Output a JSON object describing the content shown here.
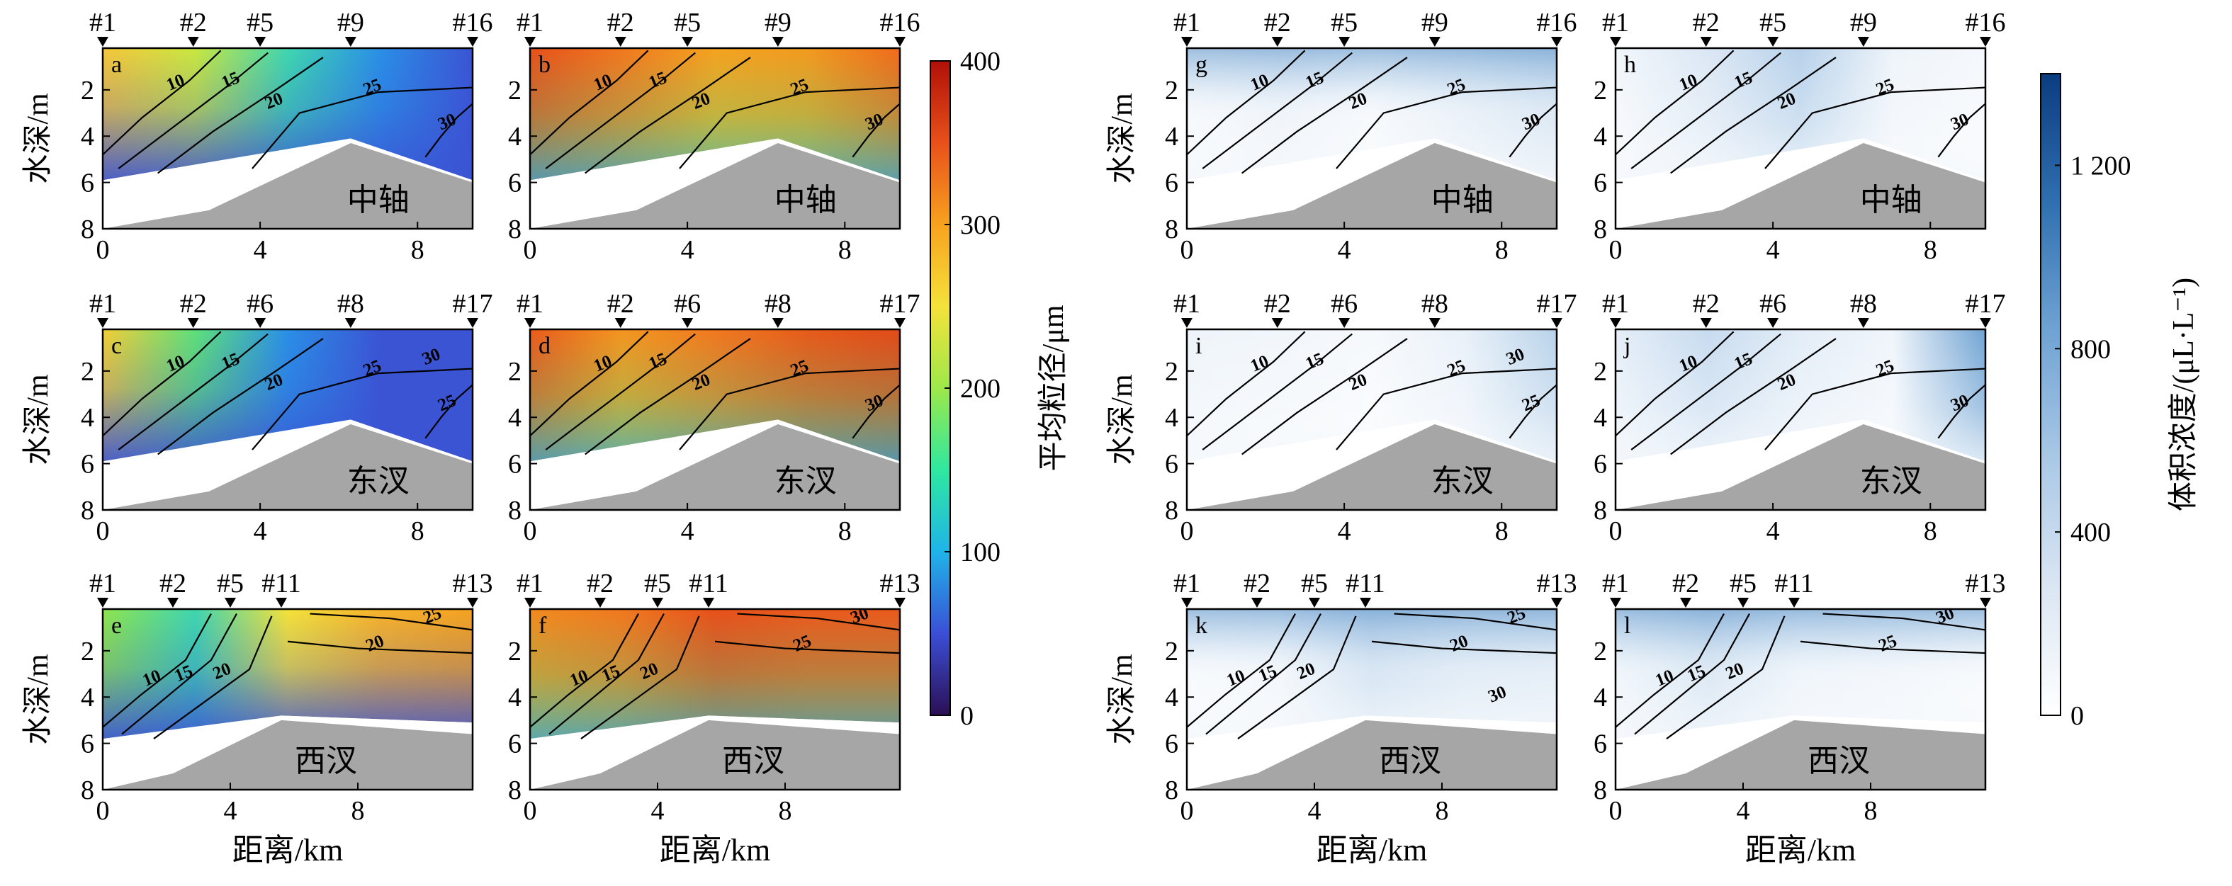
{
  "figure": {
    "ylabel": "水深/m",
    "xlabel": "距离/km",
    "colorbar_size": {
      "label": "平均粒径/μm",
      "ticks": [
        "0",
        "100",
        "200",
        "300",
        "400"
      ],
      "range": [
        0,
        400
      ],
      "colors": [
        "#2b0f54",
        "#3b4fd6",
        "#1fb4e8",
        "#2ee8a0",
        "#9de84a",
        "#f5e23a",
        "#f7a21e",
        "#e8501a",
        "#b01008"
      ]
    },
    "colorbar_conc": {
      "label": "体积浓度/(μL·L⁻¹)",
      "ticks": [
        "0",
        "400",
        "800",
        "1 200"
      ],
      "range": [
        0,
        1400
      ],
      "colors": [
        "#ffffff",
        "#dbe6f3",
        "#a9c8e6",
        "#6fa3d3",
        "#2f6fb0",
        "#0b3c80"
      ]
    }
  },
  "chart_data": [
    {
      "panel": "a",
      "type": "heatmap",
      "variable": "平均粒径",
      "section": "中轴",
      "stations": [
        "#1",
        "#2",
        "#5",
        "#9",
        "#16"
      ],
      "station_x_km": [
        0,
        2.3,
        4,
        6.3,
        9.4
      ],
      "xticks": [
        "0",
        "4",
        "8"
      ],
      "yticks": [
        "2",
        "4",
        "6",
        "8"
      ],
      "xlim": [
        0,
        9.4
      ],
      "ylim": [
        8,
        0.2
      ],
      "contour_labels": [
        "10",
        "15",
        "20",
        "25",
        "30"
      ]
    },
    {
      "panel": "b",
      "type": "heatmap",
      "variable": "平均粒径",
      "section": "中轴",
      "stations": [
        "#1",
        "#2",
        "#5",
        "#9",
        "#16"
      ],
      "station_x_km": [
        0,
        2.3,
        4,
        6.3,
        9.4
      ],
      "xticks": [
        "0",
        "4",
        "8"
      ],
      "yticks": [
        "2",
        "4",
        "6",
        "8"
      ],
      "xlim": [
        0,
        9.4
      ],
      "ylim": [
        8,
        0.2
      ],
      "contour_labels": [
        "10",
        "15",
        "20",
        "25",
        "30"
      ]
    },
    {
      "panel": "c",
      "type": "heatmap",
      "variable": "平均粒径",
      "section": "东汊",
      "stations": [
        "#1",
        "#2",
        "#6",
        "#8",
        "#17"
      ],
      "station_x_km": [
        0,
        2.3,
        4,
        6.3,
        9.4
      ],
      "xticks": [
        "0",
        "4",
        "8"
      ],
      "yticks": [
        "2",
        "4",
        "6",
        "8"
      ],
      "xlim": [
        0,
        9.4
      ],
      "ylim": [
        8,
        0.2
      ],
      "contour_labels": [
        "10",
        "15",
        "20",
        "25",
        "25",
        "30"
      ]
    },
    {
      "panel": "d",
      "type": "heatmap",
      "variable": "平均粒径",
      "section": "东汊",
      "stations": [
        "#1",
        "#2",
        "#6",
        "#8",
        "#17"
      ],
      "station_x_km": [
        0,
        2.3,
        4,
        6.3,
        9.4
      ],
      "xticks": [
        "0",
        "4",
        "8"
      ],
      "yticks": [
        "2",
        "4",
        "6",
        "8"
      ],
      "xlim": [
        0,
        9.4
      ],
      "ylim": [
        8,
        0.2
      ],
      "contour_labels": [
        "10",
        "15",
        "20",
        "25",
        "30"
      ]
    },
    {
      "panel": "e",
      "type": "heatmap",
      "variable": "平均粒径",
      "section": "西汊",
      "stations": [
        "#1",
        "#2",
        "#5",
        "#11",
        "#13"
      ],
      "station_x_km": [
        0,
        2.2,
        4,
        5.6,
        11.6
      ],
      "xticks": [
        "0",
        "4",
        "8"
      ],
      "yticks": [
        "2",
        "4",
        "6",
        "8"
      ],
      "xlim": [
        0,
        11.6
      ],
      "ylim": [
        8,
        0.2
      ],
      "contour_labels": [
        "10",
        "15",
        "20",
        "20",
        "25"
      ]
    },
    {
      "panel": "f",
      "type": "heatmap",
      "variable": "平均粒径",
      "section": "西汊",
      "stations": [
        "#1",
        "#2",
        "#5",
        "#11",
        "#13"
      ],
      "station_x_km": [
        0,
        2.2,
        4,
        5.6,
        11.6
      ],
      "xticks": [
        "0",
        "4",
        "8"
      ],
      "yticks": [
        "2",
        "4",
        "6",
        "8"
      ],
      "xlim": [
        0,
        11.6
      ],
      "ylim": [
        8,
        0.2
      ],
      "contour_labels": [
        "10",
        "15",
        "20",
        "25",
        "30"
      ]
    },
    {
      "panel": "g",
      "type": "heatmap",
      "variable": "体积浓度",
      "section": "中轴",
      "stations": [
        "#1",
        "#2",
        "#5",
        "#9",
        "#16"
      ],
      "station_x_km": [
        0,
        2.3,
        4,
        6.3,
        9.4
      ],
      "xticks": [
        "0",
        "4",
        "8"
      ],
      "yticks": [
        "2",
        "4",
        "6",
        "8"
      ],
      "xlim": [
        0,
        9.4
      ],
      "ylim": [
        8,
        0.2
      ],
      "contour_labels": [
        "10",
        "15",
        "20",
        "25",
        "30"
      ]
    },
    {
      "panel": "h",
      "type": "heatmap",
      "variable": "体积浓度",
      "section": "中轴",
      "stations": [
        "#1",
        "#2",
        "#5",
        "#9",
        "#16"
      ],
      "station_x_km": [
        0,
        2.3,
        4,
        6.3,
        9.4
      ],
      "xticks": [
        "0",
        "4",
        "8"
      ],
      "yticks": [
        "2",
        "4",
        "6",
        "8"
      ],
      "xlim": [
        0,
        9.4
      ],
      "ylim": [
        8,
        0.2
      ],
      "contour_labels": [
        "10",
        "15",
        "20",
        "25",
        "30"
      ]
    },
    {
      "panel": "i",
      "type": "heatmap",
      "variable": "体积浓度",
      "section": "东汊",
      "stations": [
        "#1",
        "#2",
        "#6",
        "#8",
        "#17"
      ],
      "station_x_km": [
        0,
        2.3,
        4,
        6.3,
        9.4
      ],
      "xticks": [
        "0",
        "4",
        "8"
      ],
      "yticks": [
        "2",
        "4",
        "6",
        "8"
      ],
      "xlim": [
        0,
        9.4
      ],
      "ylim": [
        8,
        0.2
      ],
      "contour_labels": [
        "10",
        "15",
        "20",
        "25",
        "25",
        "30"
      ]
    },
    {
      "panel": "j",
      "type": "heatmap",
      "variable": "体积浓度",
      "section": "东汊",
      "stations": [
        "#1",
        "#2",
        "#6",
        "#8",
        "#17"
      ],
      "station_x_km": [
        0,
        2.3,
        4,
        6.3,
        9.4
      ],
      "xticks": [
        "0",
        "4",
        "8"
      ],
      "yticks": [
        "2",
        "4",
        "6",
        "8"
      ],
      "xlim": [
        0,
        9.4
      ],
      "ylim": [
        8,
        0.2
      ],
      "contour_labels": [
        "10",
        "15",
        "20",
        "25",
        "30"
      ]
    },
    {
      "panel": "k",
      "type": "heatmap",
      "variable": "体积浓度",
      "section": "西汊",
      "stations": [
        "#1",
        "#2",
        "#5",
        "#11",
        "#13"
      ],
      "station_x_km": [
        0,
        2.2,
        4,
        5.6,
        11.6
      ],
      "xticks": [
        "0",
        "4",
        "8"
      ],
      "yticks": [
        "2",
        "4",
        "6",
        "8"
      ],
      "xlim": [
        0,
        11.6
      ],
      "ylim": [
        8,
        0.2
      ],
      "contour_labels": [
        "10",
        "15",
        "20",
        "20",
        "25",
        "30"
      ]
    },
    {
      "panel": "l",
      "type": "heatmap",
      "variable": "体积浓度",
      "section": "西汊",
      "stations": [
        "#1",
        "#2",
        "#5",
        "#11",
        "#13"
      ],
      "station_x_km": [
        0,
        2.2,
        4,
        5.6,
        11.6
      ],
      "xticks": [
        "0",
        "4",
        "8"
      ],
      "yticks": [
        "2",
        "4",
        "6",
        "8"
      ],
      "xlim": [
        0,
        11.6
      ],
      "ylim": [
        8,
        0.2
      ],
      "contour_labels": [
        "10",
        "15",
        "20",
        "25",
        "30"
      ]
    }
  ]
}
